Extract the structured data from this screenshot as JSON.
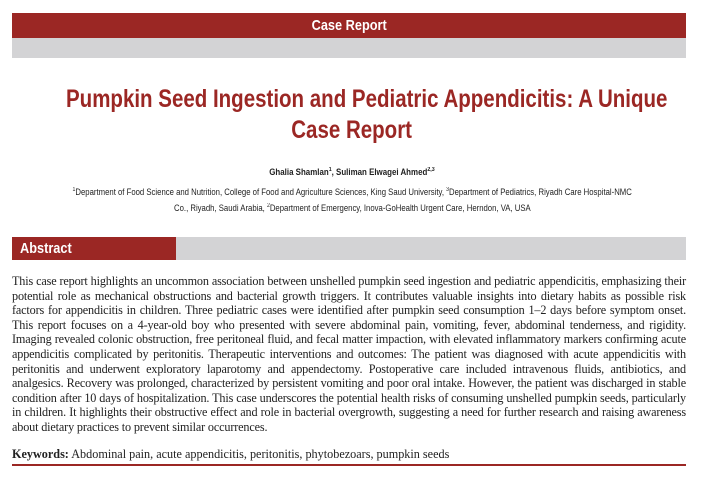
{
  "header": {
    "section_label": "Case Report"
  },
  "article": {
    "title_line1": "Pumpkin Seed Ingestion and Pediatric Appendicitis: A Unique",
    "title_line2": "Case Report",
    "authors": [
      {
        "name": "Ghalia Shamlan",
        "sup": "1"
      },
      {
        "name": "Suliman Elwagei Ahmed",
        "sup": "2,3"
      }
    ],
    "affiliations": {
      "line1_sup1": "1",
      "line1_text1": "Department of Food Science and Nutrition, College of Food and Agriculture Sciences, King Saud University, ",
      "line1_sup2": "3",
      "line1_text2": "Department of Pediatrics, Riyadh Care Hospital-NMC",
      "line2_text1": "Co., Riyadh, Saudi Arabia, ",
      "line2_sup": "2",
      "line2_text2": "Department of Emergency, Inova-GoHealth Urgent Care, Herndon, VA, USA"
    }
  },
  "abstract": {
    "heading": "Abstract",
    "text": "This case report highlights an uncommon association between unshelled pumpkin seed ingestion and pediatric appendicitis, emphasizing their potential role as mechanical obstructions and bacterial growth triggers. It contributes valuable insights into dietary habits as possible risk factors for appendicitis in children. Three pediatric cases were identified after pumpkin seed consumption 1–2 days before symptom onset. This report focuses on a 4-year-old boy who presented with severe abdominal pain, vomiting, fever, abdominal tenderness, and rigidity. Imaging revealed colonic obstruction, free peritoneal fluid, and fecal matter impaction, with elevated inflammatory markers confirming acute appendicitis complicated by peritonitis. Therapeutic interventions and outcomes: The patient was diagnosed with acute appendicitis with peritonitis and underwent exploratory laparotomy and appendectomy. Postoperative care included intravenous fluids, antibiotics, and analgesics. Recovery was prolonged, characterized by persistent vomiting and poor oral intake. However, the patient was discharged in stable condition after 10 days of hospitalization. This case underscores the potential health risks of consuming unshelled pumpkin seeds, particularly in children. It highlights their obstructive effect and role in bacterial overgrowth, suggesting a need for further research and raising awareness about dietary practices to prevent similar occurrences.",
    "keywords_label": "Keywords:",
    "keywords": "Abdominal pain, acute appendicitis, peritonitis, phytobezoars, pumpkin seeds"
  },
  "colors": {
    "accent": "#9b2724",
    "band_gray": "#d3d3d5"
  }
}
